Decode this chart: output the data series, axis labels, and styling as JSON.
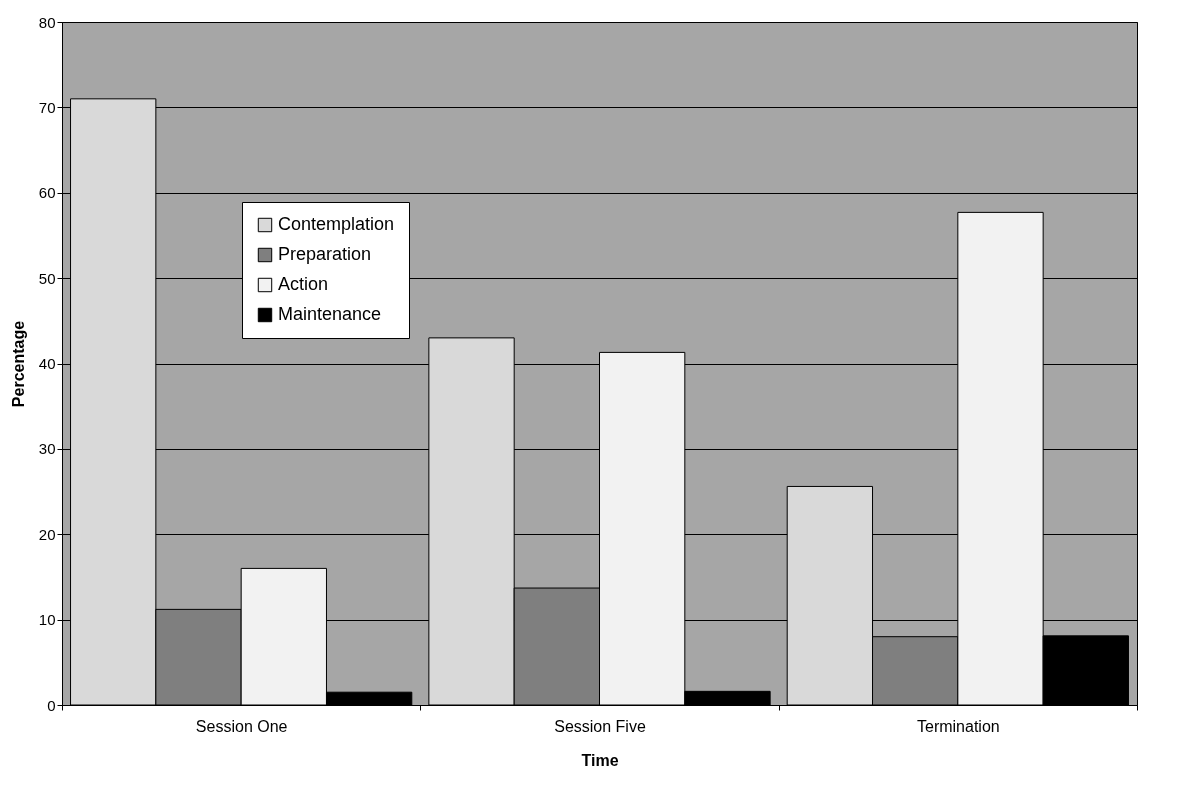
{
  "chart_data": {
    "type": "bar",
    "xlabel": "Time",
    "ylabel": "Percentage",
    "categories": [
      "Session One",
      "Session Five",
      "Termination"
    ],
    "series": [
      {
        "name": "Contemplation",
        "color": "#d9d9d9",
        "values": [
          71,
          43,
          25.6
        ]
      },
      {
        "name": "Preparation",
        "color": "#7f7f7f",
        "values": [
          11.2,
          13.7,
          8
        ]
      },
      {
        "name": "Action",
        "color": "#f2f2f2",
        "values": [
          16,
          41.3,
          57.7
        ]
      },
      {
        "name": "Maintenance",
        "color": "#000000",
        "values": [
          1.5,
          1.6,
          8.1
        ]
      }
    ],
    "ylim": [
      0,
      80
    ],
    "yticks": [
      0,
      10,
      20,
      30,
      40,
      50,
      60,
      70,
      80
    ],
    "grid": "y",
    "legend": "top left"
  }
}
